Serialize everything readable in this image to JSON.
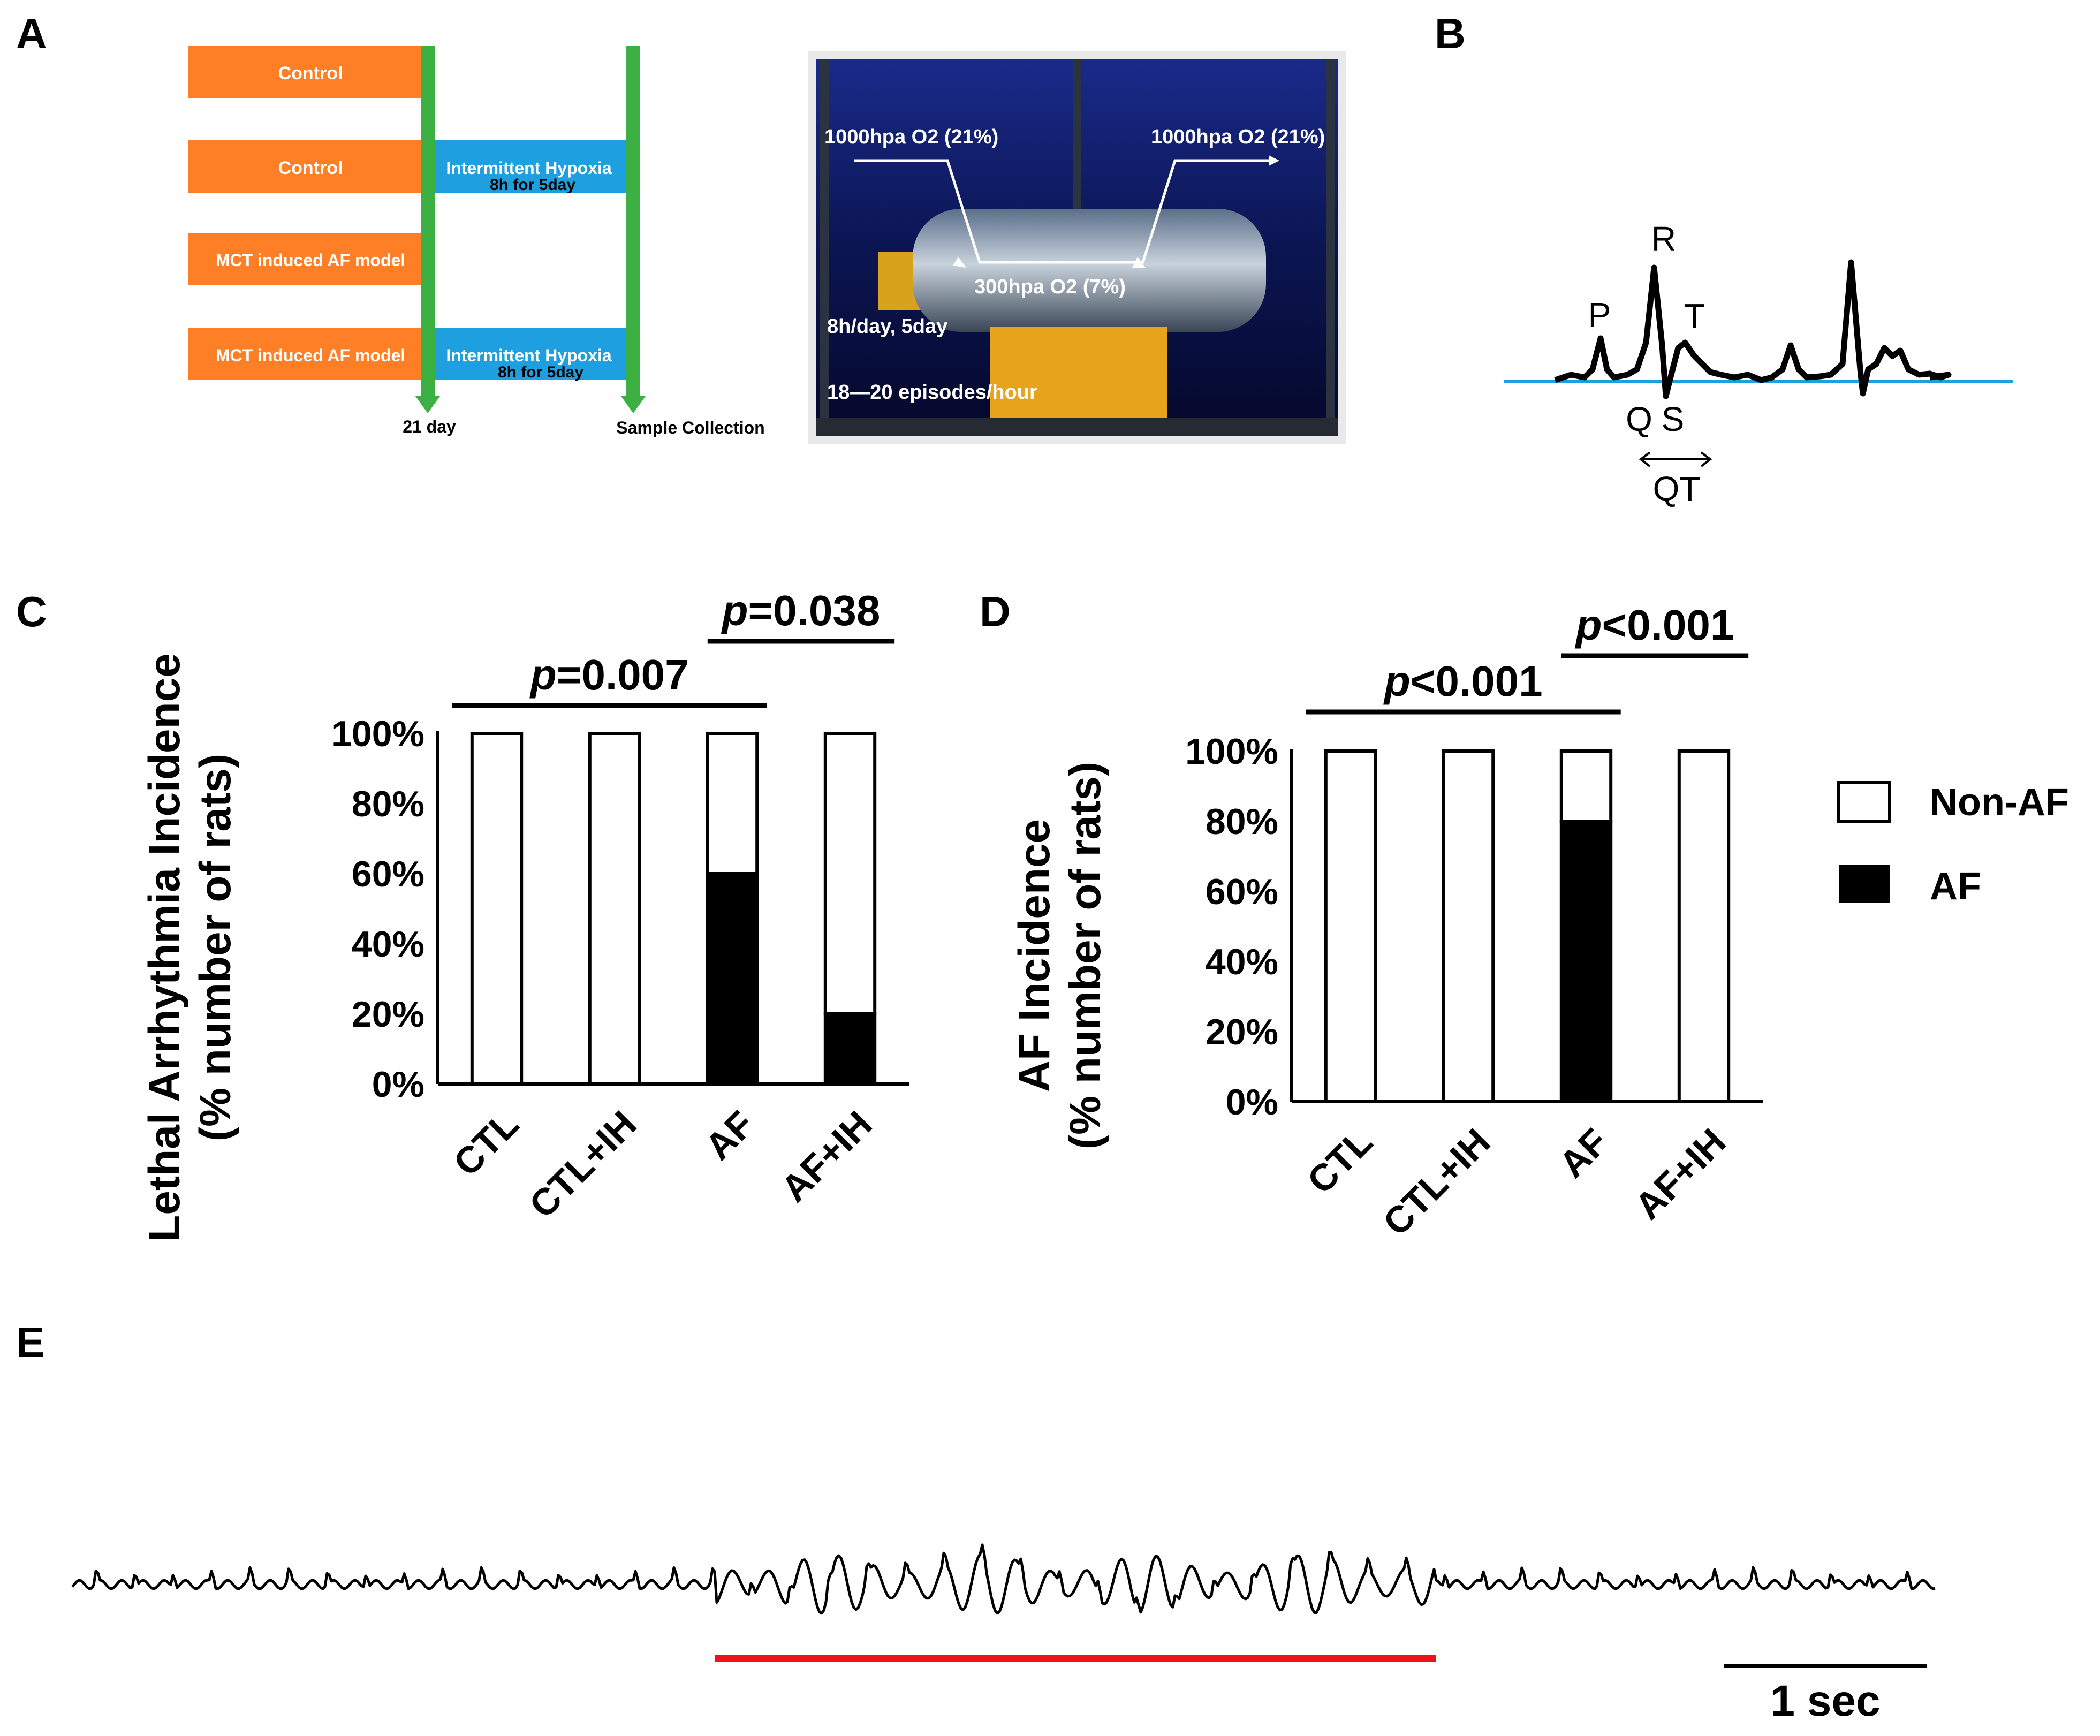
{
  "panels": {
    "a": "A",
    "b": "B",
    "c": "C",
    "d": "D",
    "e": "E"
  },
  "timeline": {
    "rows": [
      {
        "left": "Control",
        "right": ""
      },
      {
        "left": "Control",
        "right": "Intermittent Hypoxia",
        "right_sub": "8h for 5day"
      },
      {
        "left": "MCT induced AF model",
        "right": ""
      },
      {
        "left": "MCT induced AF model",
        "right": "Intermittent Hypoxia",
        "right_sub": "8h for 5day"
      }
    ],
    "day_label": "21 day",
    "end_label": "Sample Collection",
    "colors": {
      "orange": "#FF7F27",
      "blue": "#1E9FE0",
      "green": "#3CB043"
    }
  },
  "chamber": {
    "o2_high_left": "1000hpa O2 (21%)",
    "o2_high_right": "1000hpa O2 (21%)",
    "o2_low": "300hpa O2 (7%)",
    "schedule": "8h/day, 5day",
    "episodes": "18—20 episodes/hour"
  },
  "ecg_labels": {
    "p": "P",
    "r": "R",
    "t": "T",
    "q": "Q",
    "s": "S",
    "qt": "QT",
    "baseline_color": "#1E9FE0"
  },
  "chart_data": [
    {
      "type": "bar",
      "panel": "C",
      "categories": [
        "CTL",
        "CTL+IH",
        "AF",
        "AF+IH"
      ],
      "series": [
        {
          "name": "AF",
          "values": [
            0,
            0,
            60,
            20
          ]
        },
        {
          "name": "Non-AF",
          "values": [
            100,
            100,
            40,
            80
          ]
        }
      ],
      "stacked": true,
      "ylabel_line1": "Lethal Arrhythmia Incidence",
      "ylabel_line2": "(% number of rats)",
      "ylim": [
        0,
        100
      ],
      "yticks": [
        "0%",
        "20%",
        "40%",
        "60%",
        "80%",
        "100%"
      ],
      "annotations": [
        {
          "p": "p",
          "text": "=0.007",
          "from": "CTL",
          "to": "AF"
        },
        {
          "p": "p",
          "text": "=0.038",
          "from": "AF",
          "to": "AF+IH"
        }
      ]
    },
    {
      "type": "bar",
      "panel": "D",
      "categories": [
        "CTL",
        "CTL+IH",
        "AF",
        "AF+IH"
      ],
      "series": [
        {
          "name": "AF",
          "values": [
            0,
            0,
            80,
            0
          ]
        },
        {
          "name": "Non-AF",
          "values": [
            100,
            100,
            20,
            100
          ]
        }
      ],
      "stacked": true,
      "ylabel_line1": "AF Incidence",
      "ylabel_line2": "(% number of rats)",
      "ylim": [
        0,
        100
      ],
      "yticks": [
        "0%",
        "20%",
        "40%",
        "60%",
        "80%",
        "100%"
      ],
      "annotations": [
        {
          "p": "p",
          "text": "<0.001",
          "from": "CTL",
          "to": "AF"
        },
        {
          "p": "p",
          "text": "<0.001",
          "from": "AF",
          "to": "AF+IH"
        }
      ]
    }
  ],
  "legend": {
    "non_af": "Non-AF",
    "af": "AF"
  },
  "trace": {
    "scale_label": "1 sec",
    "af_marker_color": "#E8161C"
  }
}
